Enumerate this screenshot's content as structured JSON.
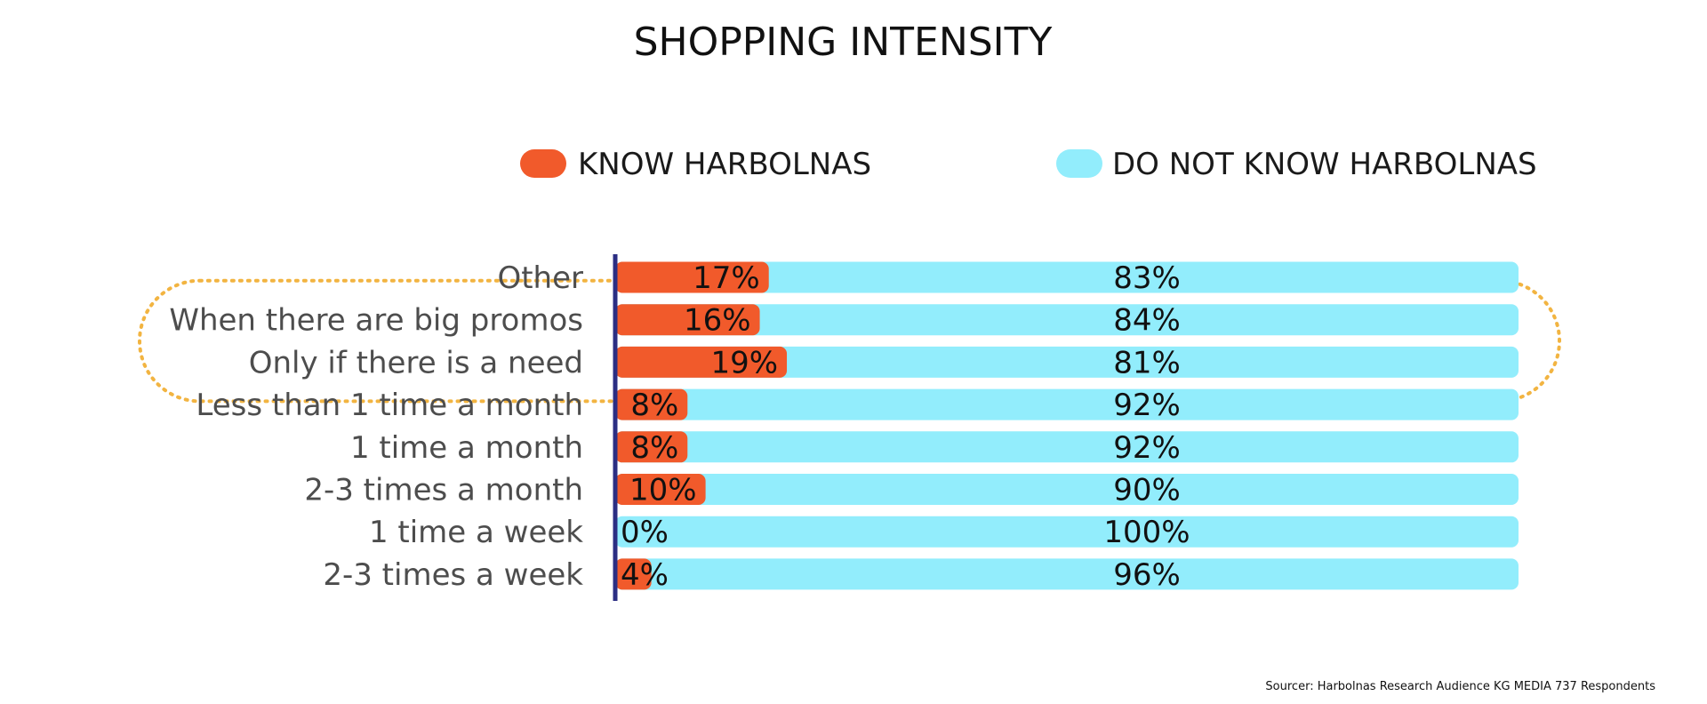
{
  "chart_data": {
    "type": "bar",
    "stacked": true,
    "orientation": "horizontal",
    "title": "SHOPPING INTENSITY",
    "categories": [
      "Other",
      "When there are big promos",
      "Only if there is a need",
      "Less than 1 time a month",
      "1 time a month",
      "2-3 times a month",
      "1 time a week",
      "2-3 times a week"
    ],
    "series": [
      {
        "name": "KNOW HARBOLNAS",
        "color": "#F15A2B",
        "values": [
          17,
          16,
          19,
          8,
          8,
          10,
          0,
          4
        ]
      },
      {
        "name": "DO NOT KNOW HARBOLNAS",
        "color": "#92EDFC",
        "values": [
          83,
          84,
          81,
          92,
          92,
          90,
          100,
          96
        ]
      }
    ],
    "data_labels": {
      "series_0": [
        "17%",
        "16%",
        "19%",
        "8%",
        "8%",
        "10%",
        "0%",
        "4%"
      ],
      "series_1": [
        "83%",
        "84%",
        "81%",
        "92%",
        "92%",
        "90%",
        "100%",
        "96%"
      ]
    },
    "xlim": [
      0,
      100
    ],
    "legend_position": "top",
    "grid": false,
    "highlighted_categories": [
      "When there are big promos",
      "Only if there is a need"
    ],
    "colors": {
      "axis": "#2B2E83",
      "highlight": "#F2B441",
      "category_text": "#4D4D4D"
    },
    "source": "Sourcer: Harbolnas Research Audience KG MEDIA 737 Respondents"
  }
}
